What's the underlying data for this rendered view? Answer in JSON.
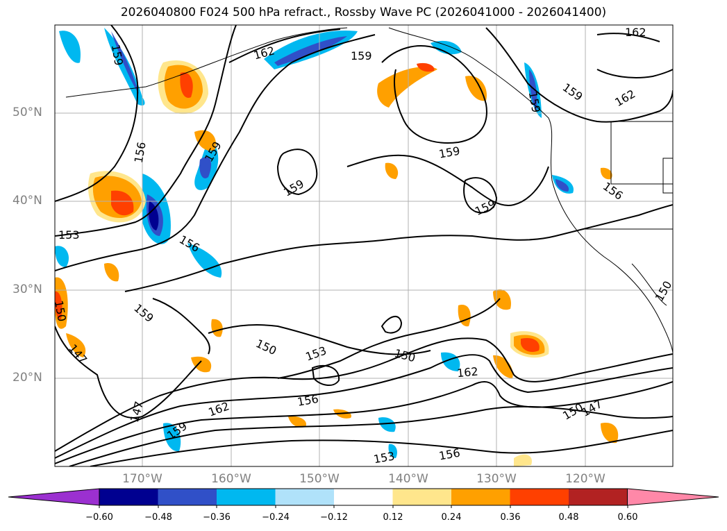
{
  "title": "2026040800 F024 500 hPa refract., Rossby Wave PC (2026041000 - 2026041400)",
  "map": {
    "lat_labels": [
      "50°N",
      "40°N",
      "30°N",
      "20°N"
    ],
    "lon_labels": [
      "170°W",
      "160°W",
      "150°W",
      "140°W",
      "130°W",
      "120°W"
    ],
    "contour_labels": [
      "162",
      "159",
      "159",
      "162",
      "159",
      "159",
      "162",
      "159",
      "156",
      "159",
      "159",
      "159",
      "153",
      "156",
      "159",
      "150",
      "147",
      "150",
      "153",
      "150",
      "156",
      "162",
      "162",
      "147",
      "159",
      "153",
      "156",
      "150",
      "147",
      "150",
      "156"
    ],
    "contour_line_color": "#000000",
    "coastline_color": "#000000"
  },
  "colorbar": {
    "ticks": [
      "−0.60",
      "−0.48",
      "−0.36",
      "−0.24",
      "−0.12",
      "0.12",
      "0.24",
      "0.36",
      "0.48",
      "0.60"
    ],
    "colors": [
      "#9b30d0",
      "#000090",
      "#3050c8",
      "#00b8f0",
      "#b0e2fa",
      "#ffffff",
      "#ffe68c",
      "#ffa000",
      "#ff4000",
      "#b22222",
      "#ff88a8"
    ]
  }
}
